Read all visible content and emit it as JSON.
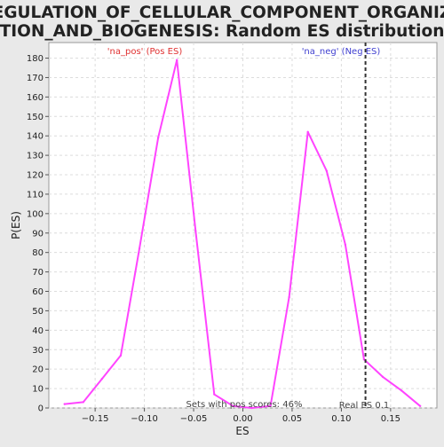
{
  "chart_data": {
    "type": "line",
    "title_line1": "REGULATION_OF_CELLULAR_COMPONENT_ORGANIZA",
    "title_line2": "TION_AND_BIOGENESIS: Random ES distribution",
    "xlabel": "ES",
    "ylabel": "P(ES)",
    "xlim": [
      -0.197,
      0.197
    ],
    "ylim": [
      0,
      188
    ],
    "x_ticks": [
      -0.15,
      -0.1,
      -0.05,
      0.0,
      0.05,
      0.1,
      0.15
    ],
    "x_tick_labels": [
      "−0.15",
      "−0.10",
      "−0.05",
      "0.00",
      "0.05",
      "0.10",
      "0.15"
    ],
    "y_ticks": [
      0,
      10,
      20,
      30,
      40,
      50,
      60,
      70,
      80,
      90,
      100,
      110,
      120,
      130,
      140,
      150,
      160,
      170,
      180
    ],
    "grid": true,
    "series": [
      {
        "color": "#ff44ff",
        "x": [
          -0.181,
          -0.162,
          -0.143,
          -0.124,
          -0.105,
          -0.086,
          -0.067,
          -0.048,
          -0.029,
          -0.01,
          0.009,
          0.028,
          0.047,
          0.066,
          0.085,
          0.104,
          0.123,
          0.142,
          0.161,
          0.18
        ],
        "y": [
          2,
          3,
          15,
          27,
          82,
          139,
          179,
          91,
          7,
          1,
          0,
          1,
          57,
          142,
          122,
          84,
          25,
          16,
          9,
          1
        ]
      }
    ],
    "real_es": {
      "x": 0.1245,
      "label": "Real ES 0.1",
      "color": "#333333"
    },
    "annotations": {
      "pos_label": "'na_pos' (Pos ES)",
      "pos_color": "#e03030",
      "neg_label": "'na_neg' (Neg ES)",
      "neg_color": "#4040d0",
      "sets_text": "Sets with pos scores: 46%"
    }
  }
}
